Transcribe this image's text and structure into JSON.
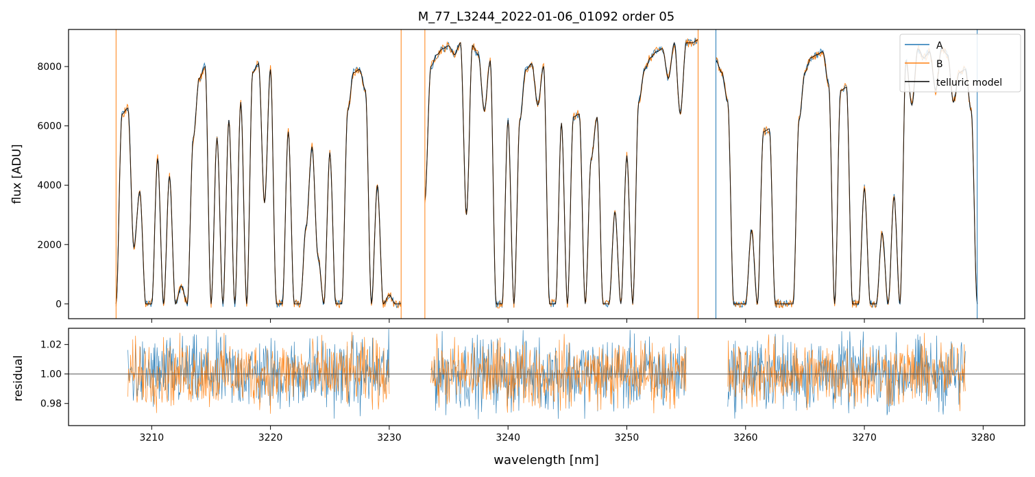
{
  "title": "M_77_L3244_2022-01-06_01092  order 05",
  "colors": {
    "A": "#1f77b4",
    "B": "#ff7f0e",
    "model": "#000000",
    "refline": "#555555"
  },
  "legend": {
    "placement": "top-right",
    "entries": [
      "A",
      "B",
      "telluric model"
    ]
  },
  "chart_data": [
    {
      "type": "line",
      "panel": "spectrum",
      "title": "M_77_L3244_2022-01-06_01092  order 05",
      "xlabel": "",
      "ylabel": "flux [ADU]",
      "xlim": [
        3203,
        3283.5
      ],
      "ylim": [
        -500,
        9250
      ],
      "yticks": [
        0,
        2000,
        4000,
        6000,
        8000
      ],
      "xticks": [
        3210,
        3220,
        3230,
        3240,
        3250,
        3260,
        3270,
        3280
      ],
      "series": [
        {
          "name": "A",
          "color": "#1f77b4"
        },
        {
          "name": "B",
          "color": "#ff7f0e"
        },
        {
          "name": "telluric model",
          "color": "#000000"
        }
      ],
      "segments": [
        {
          "x": [
            3207.0,
            3207.5,
            3208.0,
            3208.5,
            3209.0,
            3209.5,
            3210.0,
            3210.5,
            3211.0,
            3211.5,
            3212.0,
            3212.5,
            3213.0,
            3213.5,
            3214.0,
            3214.5,
            3215.0,
            3215.5,
            3216.0,
            3216.5,
            3217.0,
            3217.5,
            3218.0,
            3218.5,
            3219.0,
            3219.5,
            3220.0,
            3220.5,
            3221.0,
            3221.5,
            3222.0,
            3222.5,
            3223.0,
            3223.5,
            3224.0,
            3224.5,
            3225.0,
            3225.5,
            3226.0,
            3226.5,
            3227.0,
            3227.5,
            3228.0,
            3228.5,
            3229.0,
            3229.5,
            3230.0,
            3230.5,
            3231.0
          ],
          "y": [
            0,
            6400,
            6600,
            1900,
            3800,
            0,
            0,
            4900,
            0,
            4300,
            0,
            600,
            0,
            5600,
            7600,
            8000,
            0,
            5600,
            0,
            6200,
            0,
            6800,
            0,
            7800,
            8100,
            3400,
            7900,
            0,
            0,
            5800,
            0,
            0,
            2600,
            5300,
            1600,
            0,
            5100,
            0,
            0,
            6500,
            7800,
            7900,
            7200,
            0,
            4000,
            0,
            300,
            0,
            0
          ]
        },
        {
          "x": [
            3233.0,
            3233.5,
            3234.0,
            3234.5,
            3235.0,
            3235.5,
            3236.0,
            3236.5,
            3237.0,
            3237.5,
            3238.0,
            3238.5,
            3239.0,
            3239.5,
            3240.0,
            3240.5,
            3241.0,
            3241.5,
            3242.0,
            3242.5,
            3243.0,
            3243.5,
            3244.0,
            3244.5,
            3245.0,
            3245.5,
            3246.0,
            3246.5,
            3247.0,
            3247.5,
            3248.0,
            3248.5,
            3249.0,
            3249.5,
            3250.0,
            3250.5,
            3251.0,
            3251.5,
            3252.0,
            3252.5,
            3253.0,
            3253.5,
            3254.0,
            3254.5,
            3255.0,
            3255.5,
            3256.0
          ],
          "y": [
            3500,
            8000,
            8400,
            8600,
            8700,
            8400,
            8800,
            3000,
            8700,
            8400,
            6500,
            8200,
            0,
            0,
            6200,
            0,
            6200,
            7900,
            8100,
            6700,
            8000,
            0,
            0,
            6100,
            0,
            6300,
            6400,
            0,
            4900,
            6300,
            0,
            0,
            3100,
            0,
            5000,
            0,
            6800,
            7900,
            8300,
            8500,
            8600,
            7600,
            8800,
            6400,
            8800,
            8800,
            8900
          ]
        },
        {
          "x": [
            3257.5,
            3258.0,
            3258.5,
            3259.0,
            3259.5,
            3260.0,
            3260.5,
            3261.0,
            3261.5,
            3262.0,
            3262.5,
            3263.0,
            3263.5,
            3264.0,
            3264.5,
            3265.0,
            3265.5,
            3266.0,
            3266.5,
            3267.0,
            3267.5,
            3268.0,
            3268.5,
            3269.0,
            3269.5,
            3270.0,
            3270.5,
            3271.0,
            3271.5,
            3272.0,
            3272.5,
            3273.0,
            3273.5,
            3274.0,
            3274.5,
            3275.0,
            3275.5,
            3276.0,
            3276.5,
            3277.0,
            3277.5,
            3278.0,
            3278.5,
            3279.0,
            3279.5
          ],
          "y": [
            8200,
            7800,
            6800,
            0,
            0,
            0,
            2500,
            0,
            5800,
            5900,
            0,
            0,
            0,
            0,
            6200,
            7800,
            8300,
            8400,
            8500,
            7400,
            0,
            7200,
            7300,
            0,
            0,
            3900,
            0,
            0,
            2400,
            0,
            3600,
            0,
            8200,
            6700,
            8600,
            8300,
            8500,
            7200,
            8600,
            8400,
            6800,
            7800,
            7900,
            6500,
            0
          ]
        }
      ]
    },
    {
      "type": "line",
      "panel": "residual",
      "xlabel": "wavelength [nm]",
      "ylabel": "residual",
      "xlim": [
        3203,
        3283.5
      ],
      "ylim": [
        0.965,
        1.031
      ],
      "yticks": [
        0.98,
        1.0,
        1.02
      ],
      "ytick_labels": [
        "0.98",
        "1.00",
        "1.02"
      ],
      "xticks": [
        3210,
        3220,
        3230,
        3240,
        3250,
        3260,
        3270,
        3280
      ],
      "reference_line": 1.0,
      "series": [
        {
          "name": "A",
          "color": "#1f77b4",
          "spread": 0.012
        },
        {
          "name": "B",
          "color": "#ff7f0e",
          "spread": 0.011
        }
      ],
      "x_ranges": [
        [
          3208.0,
          3230.0
        ],
        [
          3233.5,
          3255.0
        ],
        [
          3258.5,
          3278.5
        ]
      ]
    }
  ]
}
